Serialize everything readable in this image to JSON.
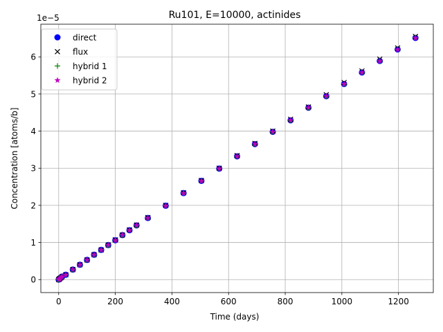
{
  "chart_data": {
    "type": "scatter",
    "title": "Ru101, E=10000, actinides",
    "xlabel": "Time (days)",
    "ylabel": "Concentration [atoms/b]",
    "offset_label": "1e−5",
    "xlim": [
      -63,
      1323
    ],
    "ylim": [
      -0.35,
      6.88
    ],
    "xticks": [
      0,
      200,
      400,
      600,
      800,
      1000,
      1200
    ],
    "yticks": [
      0,
      1,
      2,
      3,
      4,
      5,
      6
    ],
    "grid": true,
    "legend_position": "upper-left",
    "x": [
      0,
      2,
      4,
      8,
      12,
      25,
      50,
      75,
      100,
      125,
      150,
      175,
      200,
      225,
      250,
      275,
      315,
      378,
      441,
      504,
      567,
      630,
      693,
      756,
      819,
      882,
      945,
      1008,
      1071,
      1134,
      1197,
      1260
    ],
    "series": [
      {
        "name": "direct",
        "marker": "circle",
        "color": "#0000ff",
        "values": [
          0,
          0.01,
          0.03,
          0.05,
          0.08,
          0.13,
          0.27,
          0.4,
          0.53,
          0.67,
          0.8,
          0.93,
          1.06,
          1.2,
          1.33,
          1.46,
          1.66,
          1.99,
          2.33,
          2.66,
          2.99,
          3.32,
          3.65,
          3.98,
          4.29,
          4.63,
          4.94,
          5.27,
          5.58,
          5.89,
          6.2,
          6.51
        ]
      },
      {
        "name": "flux",
        "marker": "x",
        "color": "#000000",
        "values": [
          0,
          0.01,
          0.03,
          0.05,
          0.08,
          0.13,
          0.27,
          0.4,
          0.53,
          0.67,
          0.8,
          0.93,
          1.07,
          1.2,
          1.34,
          1.47,
          1.67,
          2.0,
          2.34,
          2.67,
          3.0,
          3.34,
          3.67,
          4.0,
          4.32,
          4.65,
          4.98,
          5.31,
          5.62,
          5.94,
          6.24,
          6.55
        ]
      },
      {
        "name": "hybrid 1",
        "marker": "plus",
        "color": "#008000",
        "values": [
          0,
          0.01,
          0.03,
          0.05,
          0.08,
          0.13,
          0.27,
          0.4,
          0.53,
          0.67,
          0.8,
          0.93,
          1.06,
          1.2,
          1.33,
          1.46,
          1.66,
          1.99,
          2.33,
          2.66,
          2.99,
          3.32,
          3.65,
          3.98,
          4.29,
          4.63,
          4.94,
          5.27,
          5.58,
          5.89,
          6.2,
          6.51
        ]
      },
      {
        "name": "hybrid 2",
        "marker": "star",
        "color": "#bf00bf",
        "values": [
          0,
          0.01,
          0.03,
          0.05,
          0.08,
          0.13,
          0.27,
          0.4,
          0.53,
          0.67,
          0.8,
          0.93,
          1.06,
          1.2,
          1.33,
          1.46,
          1.66,
          1.99,
          2.33,
          2.66,
          2.99,
          3.32,
          3.65,
          3.98,
          4.29,
          4.63,
          4.94,
          5.27,
          5.58,
          5.89,
          6.2,
          6.51
        ]
      }
    ]
  }
}
